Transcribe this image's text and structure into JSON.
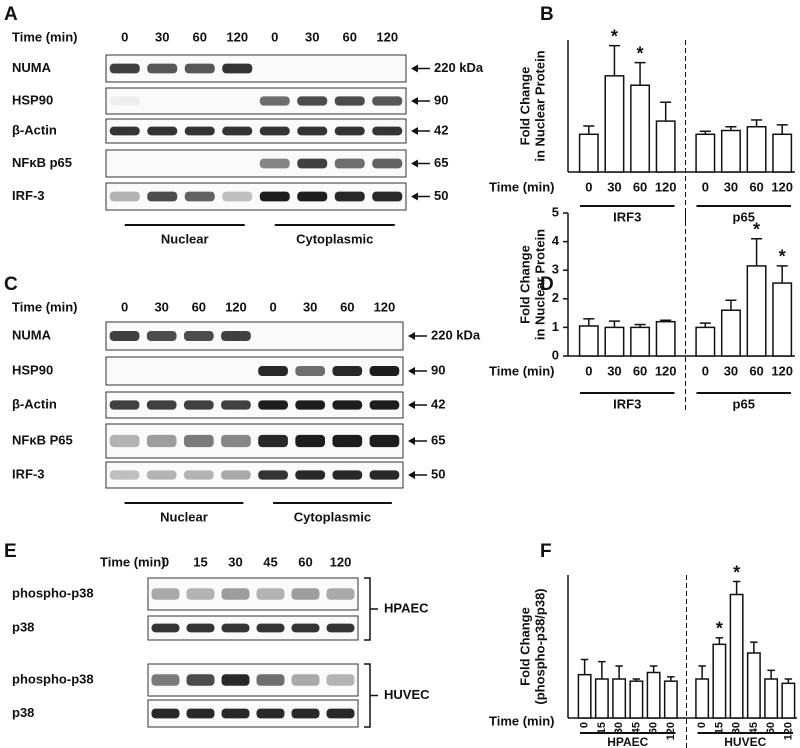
{
  "blot_panels": [
    {
      "letter": "A",
      "time_label": "Time (min)",
      "times": [
        "0",
        "30",
        "60",
        "120",
        "0",
        "30",
        "60",
        "120"
      ],
      "rows": [
        {
          "label": "NUMA",
          "size": "220 kDa"
        },
        {
          "label": "HSP90",
          "size": "90"
        },
        {
          "label": "β-Actin",
          "size": "42"
        },
        {
          "label": "NFκB p65",
          "size": "65"
        },
        {
          "label": "IRF-3",
          "size": "50"
        }
      ],
      "groups": [
        "Nuclear",
        "Cytoplasmic"
      ]
    },
    {
      "letter": "C",
      "time_label": "Time (min)",
      "times": [
        "0",
        "30",
        "60",
        "120",
        "0",
        "30",
        "60",
        "120"
      ],
      "rows": [
        {
          "label": "NUMA",
          "size": "220 kDa"
        },
        {
          "label": "HSP90",
          "size": "90"
        },
        {
          "label": "β-Actin",
          "size": "42"
        },
        {
          "label": "NFκB P65",
          "size": "65"
        },
        {
          "label": "IRF-3",
          "size": "50"
        }
      ],
      "groups": [
        "Nuclear",
        "Cytoplasmic"
      ]
    },
    {
      "letter": "E",
      "time_label": "Time (min)",
      "times": [
        "0",
        "15",
        "30",
        "45",
        "60",
        "120"
      ],
      "cell_groups": [
        {
          "name": "HPAEC",
          "rows": [
            "phospho-p38",
            "p38"
          ]
        },
        {
          "name": "HUVEC",
          "rows": [
            "phospho-p38",
            "p38"
          ]
        }
      ]
    }
  ],
  "chart_data": [
    {
      "type": "bar",
      "letter": "B",
      "y_label": [
        "Fold Change",
        "in Nuclear Protein"
      ],
      "x_label": "Time (min)",
      "categories": [
        "0",
        "30",
        "60",
        "120"
      ],
      "ylim": [
        0,
        3.5
      ],
      "series": [
        {
          "name": "IRF3",
          "color": "#ffffff",
          "values": [
            1.0,
            2.55,
            2.3,
            1.35
          ],
          "errors": [
            0.22,
            0.8,
            0.6,
            0.5
          ],
          "significance": [
            null,
            "*",
            "*",
            null
          ]
        },
        {
          "name": "p65",
          "color": "#ffffff",
          "values": [
            1.0,
            1.1,
            1.2,
            1.0
          ],
          "errors": [
            0.08,
            0.1,
            0.18,
            0.25
          ],
          "significance": [
            null,
            null,
            null,
            null
          ]
        }
      ]
    },
    {
      "type": "bar",
      "letter": "D",
      "y_label": [
        "Fold Change",
        "in Nuclear Protein"
      ],
      "x_label": "Time (min)",
      "categories": [
        "0",
        "30",
        "60",
        "120"
      ],
      "ylim": [
        0,
        5
      ],
      "yticks": [
        0,
        1,
        2,
        3,
        4,
        5
      ],
      "series": [
        {
          "name": "IRF3",
          "color": "#ffffff",
          "values": [
            1.05,
            1.0,
            1.0,
            1.2
          ],
          "errors": [
            0.25,
            0.22,
            0.1,
            0.05
          ],
          "significance": [
            null,
            null,
            null,
            null
          ]
        },
        {
          "name": "p65",
          "color": "#ffffff",
          "values": [
            1.0,
            1.6,
            3.15,
            2.55
          ],
          "errors": [
            0.15,
            0.35,
            0.95,
            0.6
          ],
          "significance": [
            null,
            null,
            "*",
            "*"
          ]
        }
      ]
    },
    {
      "type": "bar",
      "letter": "F",
      "y_label": [
        "Fold Change",
        "(phospho-p38/p38)"
      ],
      "x_label": "Time (min)",
      "categories": [
        "0",
        "15",
        "30",
        "45",
        "60",
        "120"
      ],
      "ylim": [
        0,
        3.3
      ],
      "series": [
        {
          "name": "HPAEC",
          "color": "#ffffff",
          "values": [
            1.0,
            0.9,
            0.9,
            0.85,
            1.05,
            0.85
          ],
          "errors": [
            0.35,
            0.4,
            0.3,
            0.05,
            0.15,
            0.1
          ],
          "significance": [
            null,
            null,
            null,
            null,
            null,
            null
          ]
        },
        {
          "name": "HUVEC",
          "color": "#ffffff",
          "values": [
            0.9,
            1.7,
            2.85,
            1.5,
            0.9,
            0.8
          ],
          "errors": [
            0.3,
            0.15,
            0.3,
            0.25,
            0.2,
            0.1
          ],
          "significance": [
            null,
            "*",
            "*",
            null,
            null,
            null
          ]
        }
      ]
    }
  ]
}
